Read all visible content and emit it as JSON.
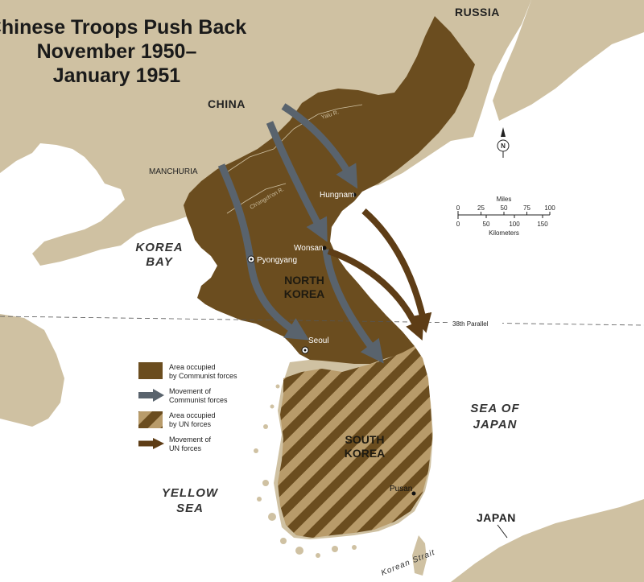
{
  "title": {
    "line1": "Chinese Troops Push Back",
    "line2": "November 1950–",
    "line3": "January 1951"
  },
  "regions": {
    "russia": "RUSSIA",
    "china": "CHINA",
    "manchuria": "MANCHURIA",
    "north_korea_line1": "NORTH",
    "north_korea_line2": "KOREA",
    "south_korea_line1": "SOUTH",
    "south_korea_line2": "KOREA",
    "japan": "JAPAN"
  },
  "water": {
    "korea_bay_line1": "KOREA",
    "korea_bay_line2": "BAY",
    "yellow_sea_line1": "YELLOW",
    "yellow_sea_line2": "SEA",
    "sea_of_japan_line1": "SEA OF",
    "sea_of_japan_line2": "JAPAN",
    "korean_strait": "Korean  Strait"
  },
  "cities": {
    "pyongyang": "Pyongyang",
    "seoul": "Seoul",
    "wonsan": "Wonsan",
    "hungnam": "Hungnam",
    "pusan": "Pusan"
  },
  "rivers": {
    "yalu_1": "Yalu R.",
    "yalu_2": "Yalu R.",
    "chongchon": "Ch'ongch'on R."
  },
  "parallel_label": "38th Parallel",
  "compass_letter": "N",
  "scale": {
    "miles_label": "Miles",
    "miles_ticks": [
      "0",
      "25",
      "50",
      "75",
      "100"
    ],
    "km_ticks": [
      "0",
      "50",
      "100",
      "150"
    ],
    "km_label": "Kilometers"
  },
  "legend": {
    "communist_area_line1": "Area occupied",
    "communist_area_line2": "by Communist forces",
    "communist_move_line1": "Movement of",
    "communist_move_line2": "Communist forces",
    "un_area_line1": "Area occupied",
    "un_area_line2": "by UN forces",
    "un_move_line1": "Movement of",
    "un_move_line2": "UN forces"
  },
  "colors": {
    "land": "#cfc1a2",
    "water": "#ffffff",
    "communist_area": "#6b4d1f",
    "communist_arrow": "#59636d",
    "un_arrow": "#5e3d16",
    "un_hatch": "#b89b6a"
  }
}
